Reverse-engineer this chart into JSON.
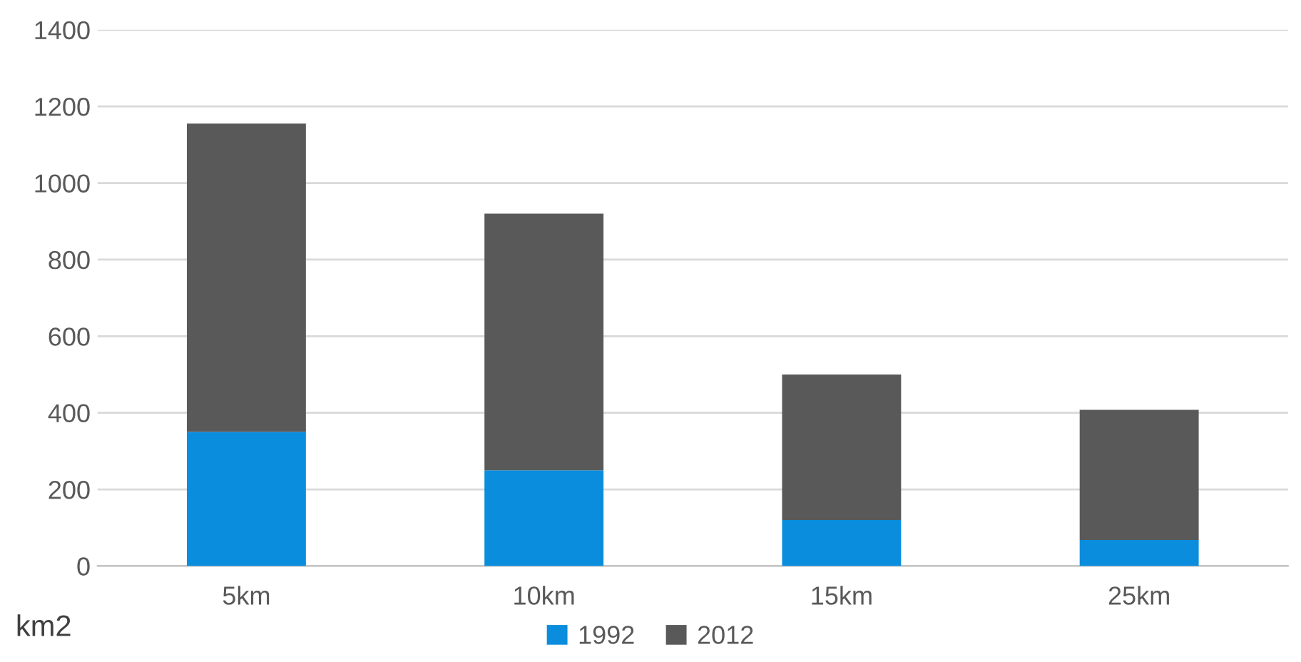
{
  "chart_data": {
    "type": "bar",
    "stacked": true,
    "categories": [
      "5km",
      "10km",
      "15km",
      "25km"
    ],
    "series": [
      {
        "name": "1992",
        "color": "#0a8ddd",
        "values": [
          350,
          250,
          120,
          68
        ]
      },
      {
        "name": "2012",
        "color": "#595959",
        "values": [
          805,
          670,
          380,
          340
        ]
      }
    ],
    "ylim": [
      0,
      1400
    ],
    "yticks": [
      0,
      200,
      400,
      600,
      800,
      1000,
      1200,
      1400
    ],
    "grid": "y",
    "legend": "bottom",
    "annotations": [
      "km2"
    ]
  }
}
